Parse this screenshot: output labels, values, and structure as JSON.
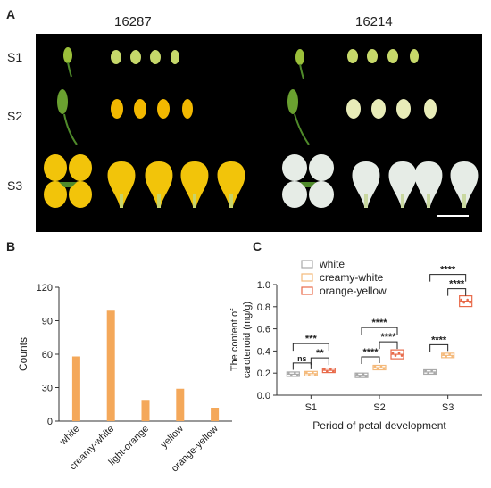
{
  "panel_a": {
    "letter": "A",
    "genotypes": [
      "16287",
      "16214"
    ],
    "stages": [
      "S1",
      "S2",
      "S3"
    ]
  },
  "panel_b": {
    "letter": "B"
  },
  "panel_c": {
    "letter": "C"
  },
  "colors": {
    "photo_bg": "#000000",
    "yellow_petal": "#f2c40a",
    "white_petal": "#e6ece6",
    "bar": "#f4a85a",
    "white_series": "#a9a9a9",
    "creamy_series": "#f4b97a",
    "orange_series": "#e86a4a"
  },
  "chart_data": [
    {
      "type": "bar",
      "categories": [
        "white",
        "creamy-white",
        "light-orange",
        "yellow",
        "orange-yellow"
      ],
      "values": [
        58,
        99,
        19,
        29,
        12
      ],
      "ylabel": "Counts",
      "xlabel": "",
      "ylim": [
        0,
        120
      ],
      "yticks": [
        0,
        30,
        60,
        90,
        120
      ]
    },
    {
      "type": "box",
      "categories": [
        "S1",
        "S2",
        "S3"
      ],
      "xlabel": "Period of petal development",
      "ylabel_lines": [
        "The content of",
        "carotenoid (mg/g)"
      ],
      "ylim": [
        0,
        1.0
      ],
      "yticks": [
        "0.0",
        "0.2",
        "0.4",
        "0.6",
        "0.8",
        "1.0"
      ],
      "legend": [
        "white",
        "creamy-white",
        "orange-yellow"
      ],
      "series": [
        {
          "name": "white",
          "values": [
            0.19,
            0.18,
            0.21
          ]
        },
        {
          "name": "creamy-white",
          "values": [
            0.195,
            0.25,
            0.36
          ]
        },
        {
          "name": "orange-yellow",
          "values": [
            0.225,
            0.37,
            0.85
          ]
        }
      ],
      "annotations": [
        {
          "stage": "S1",
          "from": "white",
          "to": "orange-yellow",
          "label": "***"
        },
        {
          "stage": "S1",
          "from": "white",
          "to": "creamy-white",
          "label": "ns"
        },
        {
          "stage": "S1",
          "from": "creamy-white",
          "to": "orange-yellow",
          "label": "**"
        },
        {
          "stage": "S2",
          "from": "white",
          "to": "orange-yellow",
          "label": "****"
        },
        {
          "stage": "S2",
          "from": "white",
          "to": "creamy-white",
          "label": "****"
        },
        {
          "stage": "S2",
          "from": "creamy-white",
          "to": "orange-yellow",
          "label": "****"
        },
        {
          "stage": "S3",
          "from": "white",
          "to": "orange-yellow",
          "label": "****"
        },
        {
          "stage": "S3",
          "from": "white",
          "to": "creamy-white",
          "label": "****"
        },
        {
          "stage": "S3",
          "from": "creamy-white",
          "to": "orange-yellow",
          "label": "****"
        }
      ]
    }
  ]
}
